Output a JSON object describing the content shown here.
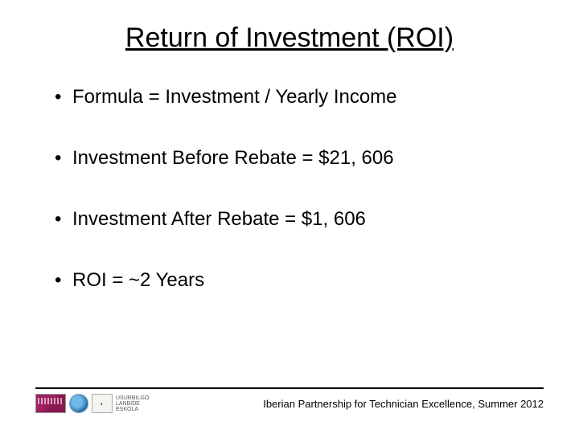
{
  "title": "Return of Investment (ROI)",
  "bullets": [
    "Formula = Investment / Yearly Income",
    "Investment Before Rebate = $21, 606",
    "Investment After Rebate = $1, 606",
    "ROI = ~2 Years"
  ],
  "footer": {
    "text": "Iberian Partnership for Technician Excellence, Summer 2012",
    "logo_label": "USURBILGO LANBIDE ESKOLA"
  },
  "styling": {
    "slide_width": 720,
    "slide_height": 540,
    "background_color": "#ffffff",
    "title_fontsize": 34,
    "title_underline": true,
    "title_color": "#000000",
    "bullet_fontsize": 24,
    "bullet_color": "#000000",
    "bullet_spacing": 48,
    "footer_fontsize": 13,
    "footer_line_color": "#000000"
  }
}
